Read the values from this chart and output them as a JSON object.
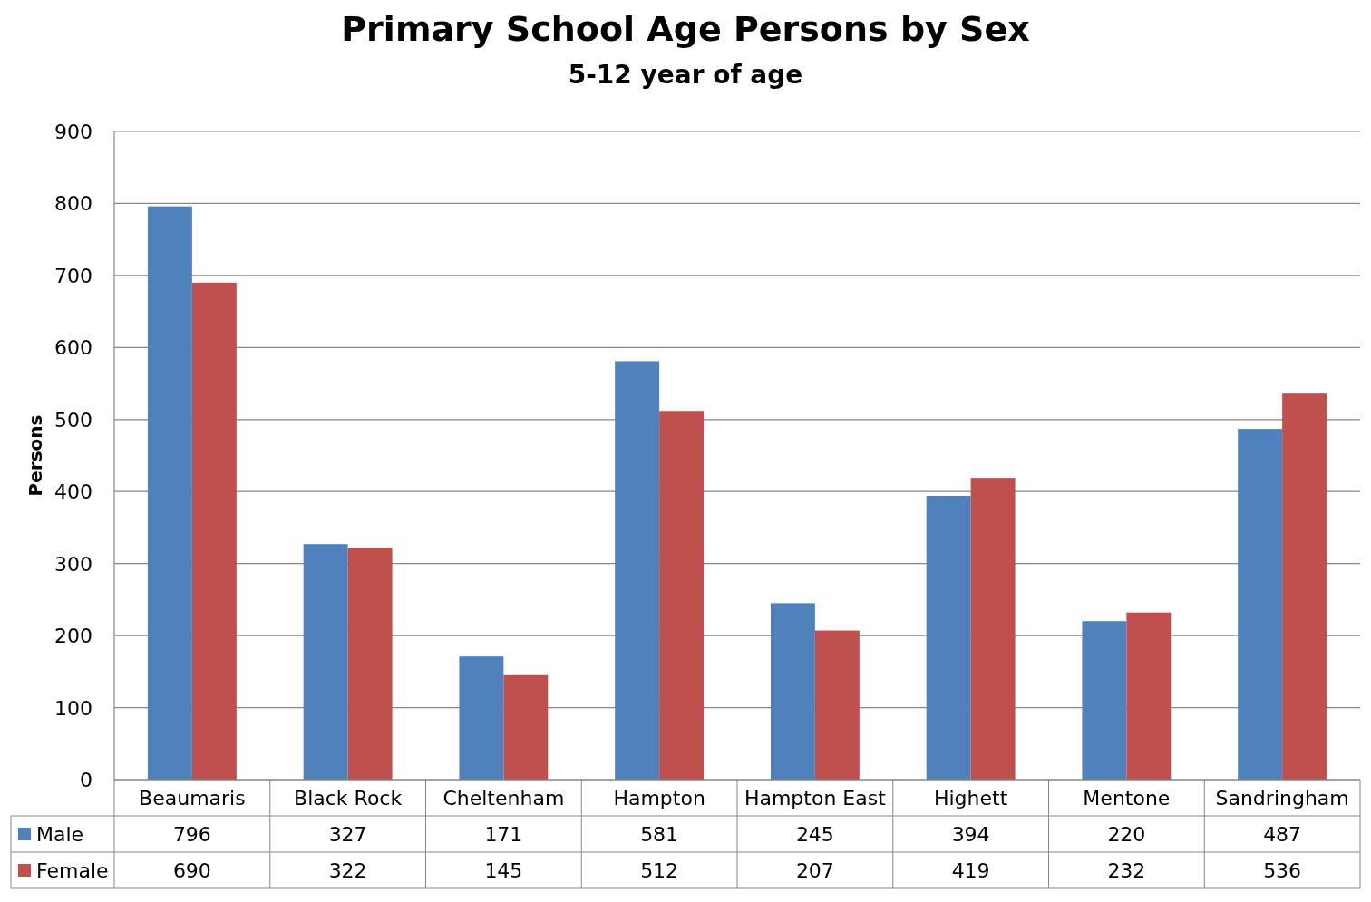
{
  "chart_data": {
    "type": "bar",
    "title": "Primary School Age Persons by Sex",
    "subtitle": "5-12 year of age",
    "ylabel": "Persons",
    "categories": [
      "Beaumaris",
      "Black Rock",
      "Cheltenham",
      "Hampton",
      "Hampton East",
      "Highett",
      "Mentone",
      "Sandringham"
    ],
    "series": [
      {
        "name": "Male",
        "color": "#4f81bd",
        "values": [
          796,
          327,
          171,
          581,
          245,
          394,
          220,
          487
        ]
      },
      {
        "name": "Female",
        "color": "#c0504d",
        "values": [
          690,
          322,
          145,
          512,
          207,
          419,
          232,
          536
        ]
      }
    ],
    "ylim": [
      0,
      900
    ],
    "yticks": [
      0,
      100,
      200,
      300,
      400,
      500,
      600,
      700,
      800,
      900
    ],
    "grid": "y",
    "legend": "bottom",
    "data_labels": true
  }
}
